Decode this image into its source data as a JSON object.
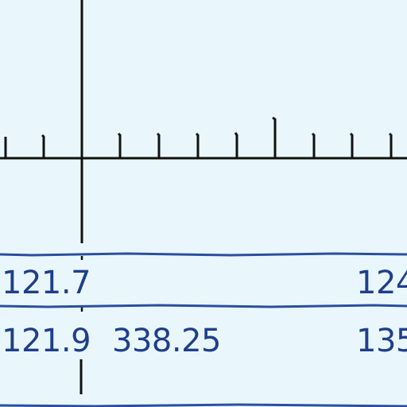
{
  "colors": {
    "background": "#e9f7fc",
    "ink": "#111111",
    "rule": "#2a4f9e",
    "text": "#1f3f8a"
  },
  "rows": [
    {
      "cells": [
        "121.7",
        "",
        "124"
      ]
    },
    {
      "cells": [
        "121.9",
        "338.25",
        "135"
      ]
    }
  ]
}
